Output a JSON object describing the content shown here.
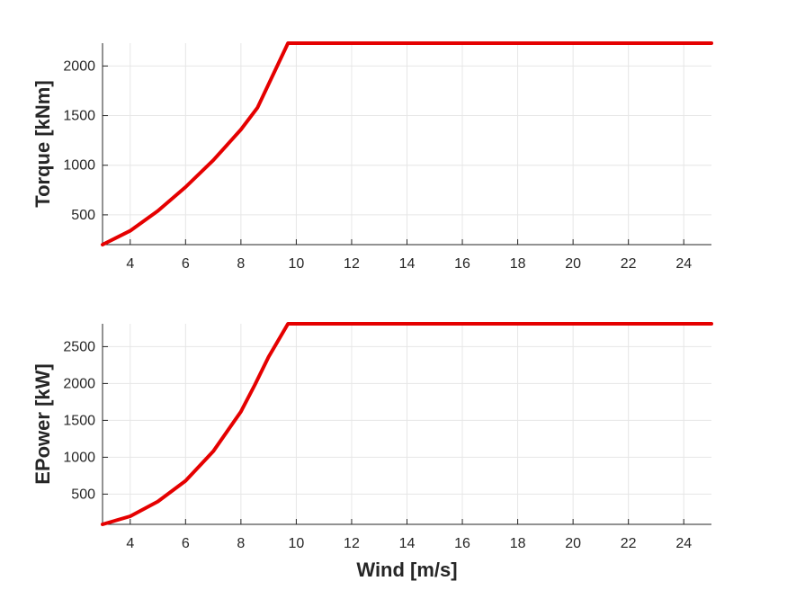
{
  "chart_data": [
    {
      "type": "line",
      "title": "",
      "xlabel": "",
      "ylabel": "Torque [kNm]",
      "xlim": [
        3,
        25
      ],
      "ylim": [
        200,
        2230
      ],
      "x_ticks": [
        4,
        6,
        8,
        10,
        12,
        14,
        16,
        18,
        20,
        22,
        24
      ],
      "y_ticks": [
        500,
        1000,
        1500,
        2000
      ],
      "grid": true,
      "series": [
        {
          "color": "#e50000",
          "x": [
            3,
            4,
            5,
            6,
            7,
            8,
            8.6,
            9.7,
            10,
            12,
            14,
            16,
            18,
            20,
            22,
            24,
            25
          ],
          "y": [
            200,
            340,
            540,
            780,
            1050,
            1360,
            1580,
            2230,
            2230,
            2230,
            2230,
            2230,
            2230,
            2230,
            2230,
            2230,
            2230
          ]
        }
      ]
    },
    {
      "type": "line",
      "title": "",
      "xlabel": "Wind [m/s]",
      "ylabel": "EPower [kW]",
      "xlim": [
        3,
        25
      ],
      "ylim": [
        90,
        2810
      ],
      "x_ticks": [
        4,
        6,
        8,
        10,
        12,
        14,
        16,
        18,
        20,
        22,
        24
      ],
      "y_ticks": [
        500,
        1000,
        1500,
        2000,
        2500
      ],
      "grid": true,
      "series": [
        {
          "color": "#e50000",
          "x": [
            3,
            4,
            5,
            6,
            7,
            8,
            8.5,
            9,
            9.7,
            10,
            12,
            14,
            16,
            18,
            20,
            22,
            24,
            25
          ],
          "y": [
            90,
            200,
            400,
            680,
            1080,
            1620,
            1980,
            2360,
            2810,
            2810,
            2810,
            2810,
            2810,
            2810,
            2810,
            2810,
            2810,
            2810
          ]
        }
      ]
    }
  ]
}
